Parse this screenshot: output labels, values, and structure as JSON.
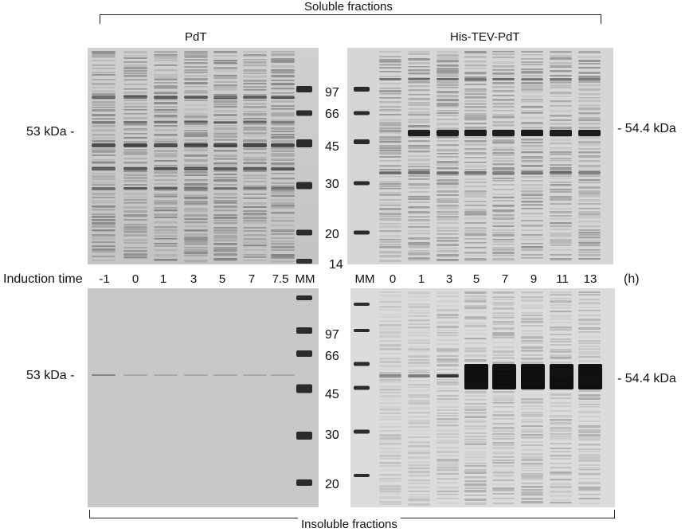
{
  "headers": {
    "soluble": "Soluble fractions",
    "insoluble": "Insoluble fractions",
    "pdt": "PdT",
    "his_tev_pdt": "His-TEV-PdT"
  },
  "markers": [
    "97",
    "66",
    "45",
    "30",
    "20",
    "14"
  ],
  "markers_bottom": [
    "97",
    "66",
    "45",
    "30",
    "20"
  ],
  "sizes": {
    "left": "53 kDa -",
    "right": "- 54.4 kDa"
  },
  "induction_label": "Induction time",
  "lanes_left": [
    "-1",
    "0",
    "1",
    "3",
    "5",
    "7",
    "7.5",
    "MM"
  ],
  "lanes_right": [
    "MM",
    "0",
    "1",
    "3",
    "5",
    "7",
    "9",
    "11",
    "13"
  ],
  "unit": "(h)"
}
